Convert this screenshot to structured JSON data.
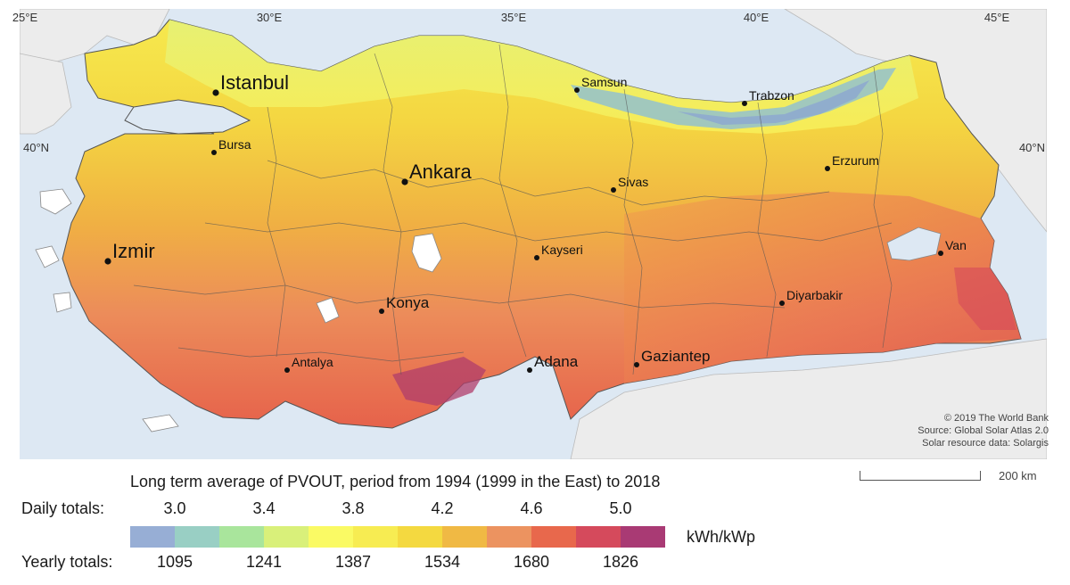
{
  "map": {
    "longitude_labels": [
      {
        "text": "25°E",
        "deg": 25
      },
      {
        "text": "30°E",
        "deg": 30
      },
      {
        "text": "35°E",
        "deg": 35
      },
      {
        "text": "40°E",
        "deg": 40
      },
      {
        "text": "45°E",
        "deg": 45
      }
    ],
    "latitude_labels": [
      {
        "text": "40°N",
        "side": "left"
      },
      {
        "text": "40°N",
        "side": "right"
      }
    ],
    "cities": [
      {
        "name": "Istanbul",
        "size": "large"
      },
      {
        "name": "Bursa",
        "size": "small"
      },
      {
        "name": "Ankara",
        "size": "large"
      },
      {
        "name": "Izmir",
        "size": "large"
      },
      {
        "name": "Samsun",
        "size": "small"
      },
      {
        "name": "Trabzon",
        "size": "small"
      },
      {
        "name": "Sivas",
        "size": "small"
      },
      {
        "name": "Erzurum",
        "size": "small"
      },
      {
        "name": "Kayseri",
        "size": "small"
      },
      {
        "name": "Van",
        "size": "small"
      },
      {
        "name": "Konya",
        "size": "medium"
      },
      {
        "name": "Diyarbakir",
        "size": "small"
      },
      {
        "name": "Antalya",
        "size": "small"
      },
      {
        "name": "Adana",
        "size": "medium"
      },
      {
        "name": "Gaziantep",
        "size": "medium"
      }
    ],
    "colors": {
      "sea": "#dde8f3",
      "land_outside": "#ececec",
      "border": "#555555"
    },
    "credits": [
      "© 2019 The World Bank",
      "Source: Global Solar Atlas 2.0",
      "Solar resource data: Solargis"
    ],
    "scale_bar_label": "200 km"
  },
  "legend": {
    "title": "Long term average of PVOUT, period from 1994 (1999 in the East) to 2018",
    "daily_label": "Daily totals:",
    "yearly_label": "Yearly totals:",
    "daily_ticks": [
      "3.0",
      "3.4",
      "3.8",
      "4.2",
      "4.6",
      "5.0"
    ],
    "yearly_ticks": [
      "1095",
      "1241",
      "1387",
      "1534",
      "1680",
      "1826"
    ],
    "unit": "kWh/kWp",
    "colors": [
      "#97aed5",
      "#99cfc4",
      "#a9e59c",
      "#d9f07a",
      "#fafa64",
      "#f7ec52",
      "#f4d940",
      "#f0b944",
      "#ec9360",
      "#e8684c",
      "#d54a5c",
      "#a93a74"
    ]
  }
}
